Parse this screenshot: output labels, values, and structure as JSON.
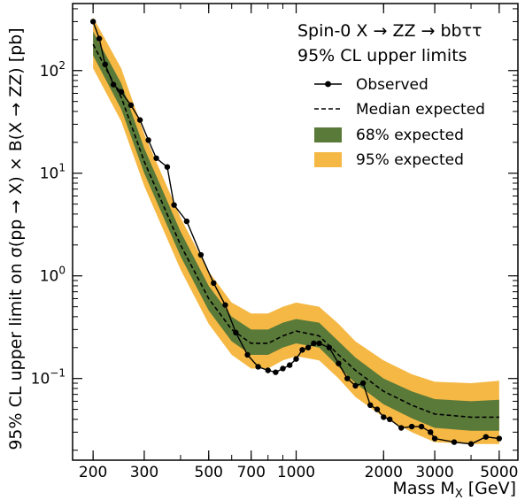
{
  "chart_data": {
    "type": "line",
    "title": "",
    "xlabel": "Mass M",
    "xlabel_sub": "X",
    "xlabel_unit": " [GeV]",
    "ylabel": "95% CL upper limit on σ(pp → X) × B(X → ZZ) [pb]",
    "xscale": "log",
    "yscale": "log",
    "xlim": [
      170,
      5800
    ],
    "ylim": [
      0.016,
      450
    ],
    "x_ticks": [
      200,
      300,
      500,
      700,
      1000,
      2000,
      3000,
      5000
    ],
    "x_tick_labels": [
      "200",
      "300",
      "500",
      "700",
      "1000",
      "2000",
      "3000",
      "5000"
    ],
    "y_ticks": [
      0.1,
      1,
      10,
      100
    ],
    "y_tick_base": [
      "10",
      "10",
      "10",
      "10"
    ],
    "y_tick_exp": [
      "−1",
      "0",
      "1",
      "2"
    ],
    "grid": false,
    "legend": {
      "placement": "top-right",
      "header": [
        "Spin-0 X → ZZ → bbττ",
        "95% CL upper limits"
      ],
      "observed": "Observed",
      "expected": "Median expected",
      "band68": "68% expected",
      "band95": "95% expected"
    },
    "colors": {
      "observed": "#000000",
      "expected": "#000000",
      "band68": "#5a7a3a",
      "band95": "#f5b844"
    },
    "series": [
      {
        "name": "Observed",
        "x": [
          200,
          210,
          220,
          235,
          250,
          270,
          290,
          310,
          330,
          360,
          380,
          420,
          470,
          520,
          570,
          620,
          680,
          740,
          800,
          850,
          900,
          950,
          1000,
          1050,
          1100,
          1150,
          1200,
          1300,
          1400,
          1500,
          1600,
          1700,
          1800,
          1900,
          2000,
          2100,
          2300,
          2500,
          2700,
          2900,
          3000,
          3500,
          4000,
          4500,
          5000
        ],
        "y": [
          300,
          205,
          115,
          73,
          62,
          46,
          33,
          21,
          14,
          11.5,
          4.9,
          3.4,
          1.6,
          0.85,
          0.52,
          0.28,
          0.17,
          0.13,
          0.12,
          0.115,
          0.125,
          0.135,
          0.155,
          0.19,
          0.2,
          0.22,
          0.22,
          0.2,
          0.14,
          0.1,
          0.085,
          0.09,
          0.055,
          0.05,
          0.042,
          0.04,
          0.033,
          0.034,
          0.034,
          0.03,
          0.026,
          0.024,
          0.023,
          0.027,
          0.026
        ]
      },
      {
        "name": "Median expected",
        "x": [
          200,
          250,
          300,
          400,
          500,
          600,
          700,
          800,
          900,
          1000,
          1200,
          1400,
          1600,
          2000,
          2500,
          3000,
          4000,
          5000
        ],
        "y": [
          180,
          55,
          13,
          2.0,
          0.6,
          0.3,
          0.22,
          0.22,
          0.26,
          0.29,
          0.26,
          0.17,
          0.12,
          0.075,
          0.055,
          0.045,
          0.042,
          0.042
        ]
      },
      {
        "name": "68% expected",
        "x": [
          200,
          250,
          300,
          400,
          500,
          600,
          700,
          800,
          900,
          1000,
          1200,
          1400,
          1600,
          2000,
          2500,
          3000,
          4000,
          5000
        ],
        "lo": [
          140,
          42,
          10,
          1.55,
          0.46,
          0.23,
          0.17,
          0.17,
          0.2,
          0.22,
          0.2,
          0.13,
          0.09,
          0.056,
          0.041,
          0.033,
          0.031,
          0.031
        ],
        "hi": [
          240,
          75,
          17.5,
          2.7,
          0.8,
          0.4,
          0.3,
          0.3,
          0.35,
          0.38,
          0.35,
          0.23,
          0.16,
          0.1,
          0.075,
          0.063,
          0.06,
          0.062
        ]
      },
      {
        "name": "95% expected",
        "x": [
          200,
          250,
          300,
          400,
          500,
          600,
          700,
          800,
          900,
          1000,
          1200,
          1400,
          1600,
          2000,
          2500,
          3000,
          4000,
          5000
        ],
        "lo": [
          105,
          32,
          7.5,
          1.15,
          0.34,
          0.17,
          0.125,
          0.125,
          0.15,
          0.165,
          0.15,
          0.1,
          0.066,
          0.042,
          0.03,
          0.024,
          0.023,
          0.023
        ],
        "hi": [
          330,
          105,
          24,
          3.7,
          1.1,
          0.55,
          0.43,
          0.43,
          0.5,
          0.55,
          0.5,
          0.34,
          0.23,
          0.15,
          0.11,
          0.093,
          0.09,
          0.095
        ]
      }
    ]
  }
}
